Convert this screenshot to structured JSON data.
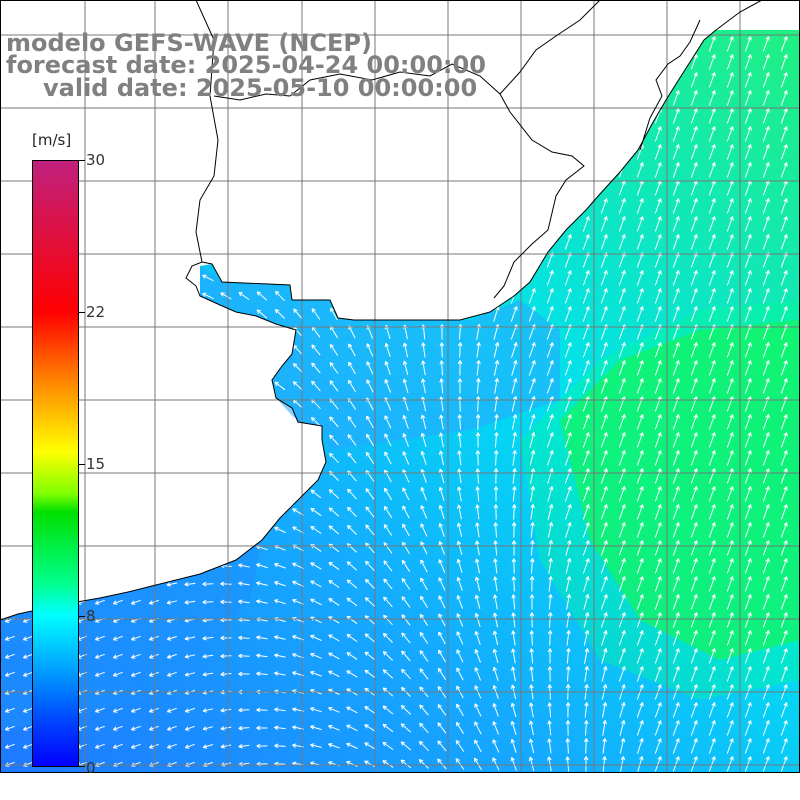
{
  "title": {
    "model": "modelo GEFS-WAVE (NCEP)",
    "forecast": "forecast date: 2025-04-24 00:00:00",
    "valid": "valid date: 2025-05-10 00:00:00"
  },
  "colorbar": {
    "units": "[m/s]",
    "ticks": [
      "30",
      "22",
      "15",
      "8",
      "0"
    ],
    "stops": [
      "#0000ff",
      "#0040ff",
      "#00a0ff",
      "#00ffff",
      "#00ff90",
      "#00e000",
      "#7fff00",
      "#ffff00",
      "#ff8c00",
      "#ff0000",
      "#c0207e"
    ]
  },
  "map": {
    "variable": "wind speed",
    "field_colors": {
      "coastal_west": "#1e90ff",
      "estuary": "#2aa8ff",
      "central": "#00d0ff",
      "offshore_east": "#00ff90",
      "offshore_max": "#20f040"
    },
    "arrow_color": "#ffffff",
    "land_color": "#ffffff",
    "coastline_color": "#000000",
    "grid_color": "#777777"
  }
}
